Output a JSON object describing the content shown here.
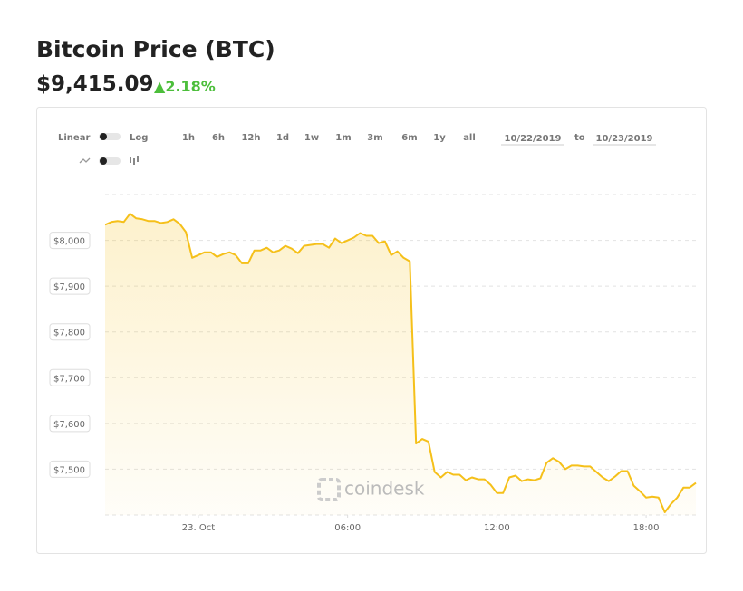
{
  "header": {
    "title": "Bitcoin Price (BTC)",
    "price": "$9,415.09",
    "change": "2.18%"
  },
  "controls": {
    "scale_labels": [
      "Linear",
      "Log"
    ],
    "ranges": [
      "1h",
      "6h",
      "12h",
      "1d",
      "1w",
      "1m",
      "3m",
      "6m",
      "1y",
      "all"
    ],
    "from": "10/22/2019",
    "to_label": "to",
    "to": "10/23/2019"
  },
  "watermark": "coindesk",
  "chart_data": {
    "type": "line",
    "color": "#f5c01a",
    "area": true,
    "grid": true,
    "x": [
      -3.75,
      -3.5,
      -3.25,
      -3,
      -2.75,
      -2.5,
      -2.25,
      -2,
      -1.75,
      -1.5,
      -1.25,
      -1,
      -0.75,
      -0.5,
      -0.25,
      0,
      0.25,
      0.5,
      0.75,
      1,
      1.25,
      1.5,
      1.75,
      2,
      2.25,
      2.5,
      2.75,
      3,
      3.25,
      3.5,
      3.75,
      4,
      4.25,
      4.5,
      4.75,
      5,
      5.25,
      5.5,
      5.75,
      6,
      6.25,
      6.5,
      6.75,
      7,
      7.25,
      7.5,
      7.75,
      8,
      8.25,
      8.5,
      8.75,
      9,
      9.25,
      9.5,
      9.75,
      10,
      10.25,
      10.5,
      10.75,
      11,
      11.25,
      11.5,
      11.75,
      12,
      12.25,
      12.5,
      12.75,
      13,
      13.25,
      13.5,
      13.75,
      14,
      14.25,
      14.5,
      14.75,
      15,
      15.25,
      15.5,
      15.75,
      16,
      16.25,
      16.5,
      16.75,
      17,
      17.25,
      17.5,
      17.75,
      18,
      18.25,
      18.5,
      18.75,
      19,
      19.25,
      19.5,
      19.75,
      20
    ],
    "values": [
      8034,
      8040,
      8042,
      8040,
      8058,
      8048,
      8046,
      8042,
      8042,
      8038,
      8040,
      8046,
      8036,
      8018,
      7962,
      7968,
      7974,
      7974,
      7964,
      7970,
      7974,
      7968,
      7950,
      7950,
      7978,
      7978,
      7984,
      7974,
      7978,
      7988,
      7982,
      7972,
      7988,
      7990,
      7992,
      7992,
      7984,
      8004,
      7994,
      8000,
      8006,
      8016,
      8010,
      8010,
      7994,
      7998,
      7968,
      7976,
      7962,
      7954,
      7556,
      7566,
      7560,
      7494,
      7482,
      7494,
      7488,
      7488,
      7476,
      7482,
      7478,
      7478,
      7466,
      7448,
      7448,
      7482,
      7486,
      7474,
      7478,
      7476,
      7480,
      7514,
      7524,
      7516,
      7500,
      7508,
      7508,
      7506,
      7506,
      7494,
      7482,
      7474,
      7484,
      7496,
      7496,
      7464,
      7452,
      7438,
      7440,
      7438,
      7406,
      7424,
      7438,
      7460,
      7460,
      7470
    ],
    "xlim": [
      -3.75,
      20
    ],
    "xticks": [
      {
        "value": 0,
        "label": "23. Oct"
      },
      {
        "value": 6,
        "label": "06:00"
      },
      {
        "value": 12,
        "label": "12:00"
      },
      {
        "value": 18,
        "label": "18:00"
      }
    ],
    "ylim": [
      7400,
      8100
    ],
    "yticks": [
      {
        "value": 7500,
        "label": "$7,500"
      },
      {
        "value": 7600,
        "label": "$7,600"
      },
      {
        "value": 7700,
        "label": "$7,700"
      },
      {
        "value": 7800,
        "label": "$7,800"
      },
      {
        "value": 7900,
        "label": "$7,900"
      },
      {
        "value": 8000,
        "label": "$8,000"
      }
    ]
  }
}
